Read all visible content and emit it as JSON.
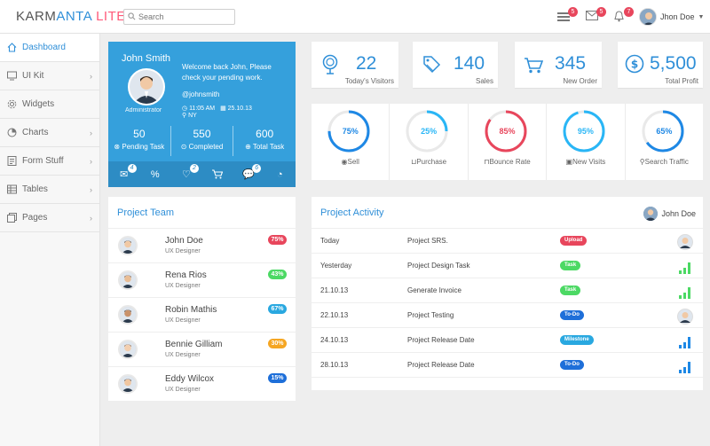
{
  "app": {
    "logo_part1": "KARM",
    "logo_part2": "ANTA",
    "logo_part3": " LITE"
  },
  "search": {
    "placeholder": "Search"
  },
  "notifications": {
    "messages_count": "5",
    "mail_count": "5",
    "bell_count": "7"
  },
  "user": {
    "name": "Jhon Doe"
  },
  "sidebar": {
    "items": [
      {
        "label": "Dashboard",
        "icon": "home-icon",
        "active": true
      },
      {
        "label": "UI Kit",
        "icon": "monitor-icon"
      },
      {
        "label": "Widgets",
        "icon": "gear-icon"
      },
      {
        "label": "Charts",
        "icon": "pie-chart-icon"
      },
      {
        "label": "Form Stuff",
        "icon": "form-icon"
      },
      {
        "label": "Tables",
        "icon": "table-icon"
      },
      {
        "label": "Pages",
        "icon": "pages-icon"
      }
    ]
  },
  "profile": {
    "name": "John Smith",
    "role": "Administrator",
    "welcome": "Welcome back John, Please check your pending work.",
    "handle": "@johnsmith",
    "time": "11:05 AM",
    "date": "25.10.13",
    "location": "NY",
    "stats": [
      {
        "value": "50",
        "label": "Pending Task"
      },
      {
        "value": "550",
        "label": "Completed"
      },
      {
        "value": "600",
        "label": "Total Task"
      }
    ],
    "icon_badges": {
      "mail": "4",
      "heart": "2",
      "chat": "6"
    }
  },
  "stat_cards": [
    {
      "value": "22",
      "label": "Today's Visitors",
      "icon": "balloon-icon"
    },
    {
      "value": "140",
      "label": "Sales",
      "icon": "tag-icon"
    },
    {
      "value": "345",
      "label": "New Order",
      "icon": "cart-icon"
    },
    {
      "value": "5,500",
      "label": "Total Profit",
      "icon": "dollar-icon"
    }
  ],
  "gauges": [
    {
      "percent": 75,
      "text": "75%",
      "label": "Sell",
      "color": "#1e88e5"
    },
    {
      "percent": 25,
      "text": "25%",
      "label": "Purchase",
      "color": "#29b6f6"
    },
    {
      "percent": 85,
      "text": "85%",
      "label": "Bounce Rate",
      "color": "#e8465c"
    },
    {
      "percent": 95,
      "text": "95%",
      "label": "New Visits",
      "color": "#29b6f6"
    },
    {
      "percent": 65,
      "text": "65%",
      "label": "Search Traffic",
      "color": "#1e88e5"
    }
  ],
  "team": {
    "title": "Project Team",
    "members": [
      {
        "name": "John Doe",
        "role": "UX Designer",
        "pct": "75%",
        "color": "#e8465c"
      },
      {
        "name": "Rena Rios",
        "role": "UX Designer",
        "pct": "43%",
        "color": "#4cd964"
      },
      {
        "name": "Robin Mathis",
        "role": "UX Designer",
        "pct": "67%",
        "color": "#29a8e0"
      },
      {
        "name": "Bennie Gilliam",
        "role": "UX Designer",
        "pct": "30%",
        "color": "#f5a623"
      },
      {
        "name": "Eddy Wilcox",
        "role": "UX Designer",
        "pct": "15%",
        "color": "#1e6fd9"
      }
    ]
  },
  "activity": {
    "title": "Project Activity",
    "user": "John Doe",
    "rows": [
      {
        "date": "Today",
        "project": "Project SRS.",
        "tag": "Upload",
        "color": "#e8465c",
        "right": "avatar"
      },
      {
        "date": "Yesterday",
        "project": "Project Design Task",
        "tag": "Task",
        "color": "#4cd964",
        "right": "bars-green"
      },
      {
        "date": "21.10.13",
        "project": "Generate Invoice",
        "tag": "Task",
        "color": "#4cd964",
        "right": "bars-green"
      },
      {
        "date": "22.10.13",
        "project": "Project Testing",
        "tag": "To-Do",
        "color": "#1e6fd9",
        "right": "avatar"
      },
      {
        "date": "24.10.13",
        "project": "Project Release Date",
        "tag": "Milestone",
        "color": "#29a8e0",
        "right": "bars-blue"
      },
      {
        "date": "28.10.13",
        "project": "Project Release Date",
        "tag": "To-Do",
        "color": "#1e6fd9",
        "right": "bars-blue"
      }
    ]
  }
}
